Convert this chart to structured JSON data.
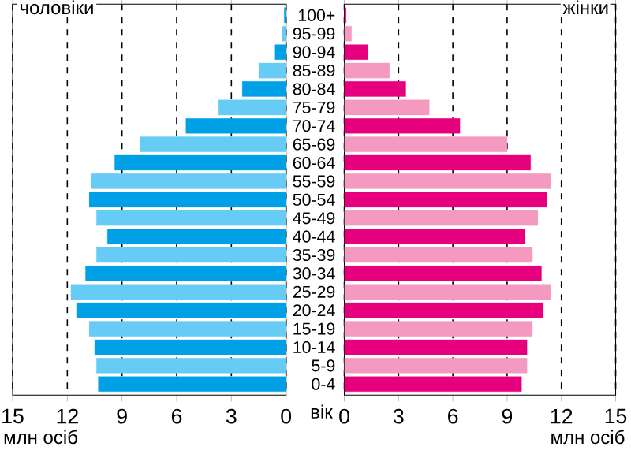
{
  "chart_data": [
    {
      "type": "bar",
      "orientation": "horizontal",
      "title": "чоловіки",
      "xlabel": "млн осіб",
      "categories": [
        null,
        null,
        null,
        null,
        null,
        null,
        null,
        null,
        null,
        null,
        null,
        null,
        null,
        null,
        null,
        null,
        null,
        null,
        null,
        null,
        null
      ],
      "values": [
        0.1,
        0.2,
        0.6,
        1.5,
        2.4,
        3.7,
        5.5,
        8.0,
        9.4,
        10.7,
        10.8,
        10.4,
        9.8,
        10.4,
        11.0,
        11.8,
        11.5,
        10.8,
        10.5,
        10.4,
        10.3
      ],
      "colors": [
        "#00a0e6",
        "#66ccf5",
        "#00a0e6",
        "#66ccf5",
        "#00a0e6",
        "#66ccf5",
        "#00a0e6",
        "#66ccf5",
        "#00a0e6",
        "#66ccf5",
        "#00a0e6",
        "#66ccf5",
        "#00a0e6",
        "#66ccf5",
        "#00a0e6",
        "#66ccf5",
        "#00a0e6",
        "#66ccf5",
        "#00a0e6",
        "#66ccf5",
        "#00a0e6"
      ],
      "xlim": [
        15,
        0
      ],
      "xticks": [
        15,
        12,
        9,
        6,
        3,
        0
      ],
      "grid": "x",
      "tick_labels": "x"
    },
    {
      "type": "bar",
      "orientation": "horizontal",
      "title": "жінки",
      "xlabel": "млн осіб",
      "ylabel": "вік",
      "categories": [
        "100+",
        "95-99",
        "90-94",
        "85-89",
        "80-84",
        "75-79",
        "70-74",
        "65-69",
        "60-64",
        "55-59",
        "50-54",
        "45-49",
        "40-44",
        "35-39",
        "30-34",
        "25-29",
        "20-24",
        "15-19",
        "10-14",
        "5-9",
        "0-4"
      ],
      "values": [
        0.1,
        0.4,
        1.3,
        2.5,
        3.4,
        4.7,
        6.4,
        9.0,
        10.3,
        11.4,
        11.2,
        10.7,
        10.0,
        10.4,
        10.9,
        11.4,
        11.0,
        10.4,
        10.1,
        10.1,
        9.8
      ],
      "colors": [
        "#e6007e",
        "#f49ac1",
        "#e6007e",
        "#f49ac1",
        "#e6007e",
        "#f49ac1",
        "#e6007e",
        "#f49ac1",
        "#e6007e",
        "#f49ac1",
        "#e6007e",
        "#f49ac1",
        "#e6007e",
        "#f49ac1",
        "#e6007e",
        "#f49ac1",
        "#e6007e",
        "#f49ac1",
        "#e6007e",
        "#f49ac1",
        "#e6007e"
      ],
      "xlim": [
        0,
        15
      ],
      "xticks": [
        0,
        3,
        6,
        9,
        12,
        15
      ],
      "grid": "x"
    }
  ]
}
